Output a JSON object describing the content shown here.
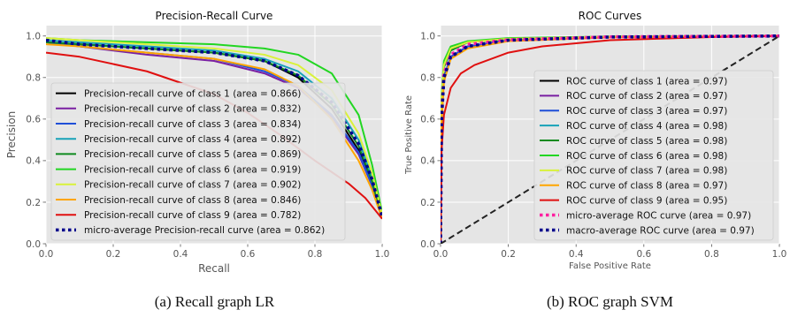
{
  "chart_data": [
    {
      "type": "line",
      "title": "Precision-Recall Curve",
      "xlabel": "Recall",
      "ylabel": "Precision",
      "xlim": [
        0.0,
        1.0
      ],
      "ylim": [
        0.0,
        1.05
      ],
      "xticks": [
        "0.0",
        "0.2",
        "0.4",
        "0.6",
        "0.8",
        "1.0"
      ],
      "yticks": [
        "0.0",
        "0.2",
        "0.4",
        "0.6",
        "0.8",
        "1.0"
      ],
      "grid": true,
      "legend_position": "lower-left",
      "series": [
        {
          "name": "Precision-recall curve of class 1 (area = 0.866)",
          "color": "#000000",
          "style": "solid",
          "points": [
            [
              0,
              0.97
            ],
            [
              0.1,
              0.96
            ],
            [
              0.3,
              0.94
            ],
            [
              0.5,
              0.92
            ],
            [
              0.65,
              0.88
            ],
            [
              0.75,
              0.8
            ],
            [
              0.85,
              0.65
            ],
            [
              0.93,
              0.45
            ],
            [
              0.97,
              0.3
            ],
            [
              1.0,
              0.12
            ]
          ]
        },
        {
          "name": "Precision-recall curve of class 2 (area = 0.832)",
          "color": "#7a1fa2",
          "style": "solid",
          "points": [
            [
              0,
              0.97
            ],
            [
              0.1,
              0.95
            ],
            [
              0.3,
              0.91
            ],
            [
              0.5,
              0.88
            ],
            [
              0.65,
              0.82
            ],
            [
              0.75,
              0.75
            ],
            [
              0.85,
              0.61
            ],
            [
              0.93,
              0.43
            ],
            [
              0.97,
              0.28
            ],
            [
              1.0,
              0.12
            ]
          ]
        },
        {
          "name": "Precision-recall curve of class 3 (area = 0.834)",
          "color": "#1f4fd8",
          "style": "solid",
          "points": [
            [
              0,
              0.97
            ],
            [
              0.1,
              0.95
            ],
            [
              0.3,
              0.92
            ],
            [
              0.5,
              0.89
            ],
            [
              0.65,
              0.83
            ],
            [
              0.75,
              0.76
            ],
            [
              0.85,
              0.62
            ],
            [
              0.93,
              0.44
            ],
            [
              0.97,
              0.28
            ],
            [
              1.0,
              0.12
            ]
          ]
        },
        {
          "name": "Precision-recall curve of class 4 (area = 0.892)",
          "color": "#17a2b8",
          "style": "solid",
          "points": [
            [
              0,
              0.98
            ],
            [
              0.1,
              0.97
            ],
            [
              0.3,
              0.95
            ],
            [
              0.5,
              0.93
            ],
            [
              0.65,
              0.89
            ],
            [
              0.75,
              0.83
            ],
            [
              0.85,
              0.7
            ],
            [
              0.93,
              0.5
            ],
            [
              0.97,
              0.32
            ],
            [
              1.0,
              0.13
            ]
          ]
        },
        {
          "name": "Precision-recall curve of class 5 (area = 0.869)",
          "color": "#0f8a1f",
          "style": "solid",
          "points": [
            [
              0,
              0.97
            ],
            [
              0.1,
              0.96
            ],
            [
              0.3,
              0.94
            ],
            [
              0.5,
              0.92
            ],
            [
              0.65,
              0.88
            ],
            [
              0.75,
              0.81
            ],
            [
              0.85,
              0.67
            ],
            [
              0.93,
              0.47
            ],
            [
              0.97,
              0.3
            ],
            [
              1.0,
              0.12
            ]
          ]
        },
        {
          "name": "Precision-recall curve of class 6 (area = 0.919)",
          "color": "#22d622",
          "style": "solid",
          "points": [
            [
              0,
              0.99
            ],
            [
              0.1,
              0.98
            ],
            [
              0.3,
              0.97
            ],
            [
              0.5,
              0.96
            ],
            [
              0.65,
              0.94
            ],
            [
              0.75,
              0.91
            ],
            [
              0.85,
              0.82
            ],
            [
              0.93,
              0.62
            ],
            [
              0.97,
              0.38
            ],
            [
              1.0,
              0.15
            ]
          ]
        },
        {
          "name": "Precision-recall curve of class 7 (area = 0.902)",
          "color": "#d9f23a",
          "style": "solid",
          "points": [
            [
              0,
              0.99
            ],
            [
              0.1,
              0.98
            ],
            [
              0.3,
              0.96
            ],
            [
              0.5,
              0.94
            ],
            [
              0.65,
              0.91
            ],
            [
              0.75,
              0.86
            ],
            [
              0.85,
              0.74
            ],
            [
              0.93,
              0.53
            ],
            [
              0.97,
              0.34
            ],
            [
              1.0,
              0.14
            ]
          ]
        },
        {
          "name": "Precision-recall curve of class 8 (area = 0.846)",
          "color": "#ffa500",
          "style": "solid",
          "points": [
            [
              0,
              0.96
            ],
            [
              0.1,
              0.95
            ],
            [
              0.3,
              0.92
            ],
            [
              0.5,
              0.89
            ],
            [
              0.65,
              0.84
            ],
            [
              0.75,
              0.76
            ],
            [
              0.85,
              0.6
            ],
            [
              0.93,
              0.4
            ],
            [
              0.97,
              0.26
            ],
            [
              1.0,
              0.12
            ]
          ]
        },
        {
          "name": "Precision-recall curve of class 9 (area = 0.782)",
          "color": "#e01010",
          "style": "solid",
          "points": [
            [
              0,
              0.92
            ],
            [
              0.1,
              0.9
            ],
            [
              0.3,
              0.83
            ],
            [
              0.5,
              0.72
            ],
            [
              0.6,
              0.63
            ],
            [
              0.7,
              0.52
            ],
            [
              0.8,
              0.4
            ],
            [
              0.9,
              0.29
            ],
            [
              0.95,
              0.22
            ],
            [
              1.0,
              0.12
            ]
          ]
        },
        {
          "name": "micro-average Precision-recall curve (area = 0.862)",
          "color": "#00008b",
          "style": "dotted",
          "points": [
            [
              0,
              0.98
            ],
            [
              0.1,
              0.96
            ],
            [
              0.3,
              0.94
            ],
            [
              0.5,
              0.92
            ],
            [
              0.65,
              0.88
            ],
            [
              0.75,
              0.81
            ],
            [
              0.85,
              0.68
            ],
            [
              0.93,
              0.48
            ],
            [
              0.97,
              0.31
            ],
            [
              1.0,
              0.13
            ]
          ]
        }
      ]
    },
    {
      "type": "line",
      "title": "ROC Curves",
      "xlabel": "False Positive Rate",
      "ylabel": "True Positive Rate",
      "xlim": [
        0.0,
        1.0
      ],
      "ylim": [
        0.0,
        1.05
      ],
      "xticks": [
        "0.0",
        "0.2",
        "0.4",
        "0.6",
        "0.8",
        "1.0"
      ],
      "yticks": [
        "0.0",
        "0.2",
        "0.4",
        "0.6",
        "0.8",
        "1.0"
      ],
      "grid": true,
      "legend_position": "lower-right",
      "series": [
        {
          "name": "ROC curve of class 1 (area = 0.97)",
          "color": "#000000",
          "style": "solid",
          "points": [
            [
              0,
              0
            ],
            [
              0.003,
              0.6
            ],
            [
              0.01,
              0.8
            ],
            [
              0.03,
              0.9
            ],
            [
              0.08,
              0.95
            ],
            [
              0.2,
              0.98
            ],
            [
              0.5,
              0.995
            ],
            [
              1,
              1
            ]
          ]
        },
        {
          "name": "ROC curve of class 2 (area = 0.97)",
          "color": "#7a1fa2",
          "style": "solid",
          "points": [
            [
              0,
              0
            ],
            [
              0.003,
              0.6
            ],
            [
              0.01,
              0.8
            ],
            [
              0.03,
              0.9
            ],
            [
              0.08,
              0.95
            ],
            [
              0.2,
              0.98
            ],
            [
              0.5,
              0.995
            ],
            [
              1,
              1
            ]
          ]
        },
        {
          "name": "ROC curve of class 3 (area = 0.97)",
          "color": "#1f4fd8",
          "style": "solid",
          "points": [
            [
              0,
              0
            ],
            [
              0.003,
              0.6
            ],
            [
              0.01,
              0.8
            ],
            [
              0.03,
              0.9
            ],
            [
              0.08,
              0.95
            ],
            [
              0.2,
              0.98
            ],
            [
              0.5,
              0.995
            ],
            [
              1,
              1
            ]
          ]
        },
        {
          "name": "ROC curve of class 4 (area = 0.98)",
          "color": "#17a2b8",
          "style": "solid",
          "points": [
            [
              0,
              0
            ],
            [
              0.003,
              0.68
            ],
            [
              0.01,
              0.85
            ],
            [
              0.03,
              0.93
            ],
            [
              0.08,
              0.97
            ],
            [
              0.2,
              0.985
            ],
            [
              0.5,
              0.997
            ],
            [
              1,
              1
            ]
          ]
        },
        {
          "name": "ROC curve of class 5 (area = 0.98)",
          "color": "#0f8a1f",
          "style": "solid",
          "points": [
            [
              0,
              0
            ],
            [
              0.003,
              0.68
            ],
            [
              0.01,
              0.85
            ],
            [
              0.03,
              0.93
            ],
            [
              0.08,
              0.97
            ],
            [
              0.2,
              0.985
            ],
            [
              0.5,
              0.997
            ],
            [
              1,
              1
            ]
          ]
        },
        {
          "name": "ROC curve of class 6 (area = 0.98)",
          "color": "#22d622",
          "style": "solid",
          "points": [
            [
              0,
              0
            ],
            [
              0.003,
              0.72
            ],
            [
              0.01,
              0.88
            ],
            [
              0.03,
              0.95
            ],
            [
              0.08,
              0.975
            ],
            [
              0.2,
              0.99
            ],
            [
              0.5,
              0.998
            ],
            [
              1,
              1
            ]
          ]
        },
        {
          "name": "ROC curve of class 7 (area = 0.98)",
          "color": "#d9f23a",
          "style": "solid",
          "points": [
            [
              0,
              0
            ],
            [
              0.003,
              0.7
            ],
            [
              0.01,
              0.86
            ],
            [
              0.03,
              0.94
            ],
            [
              0.08,
              0.97
            ],
            [
              0.2,
              0.987
            ],
            [
              0.5,
              0.997
            ],
            [
              1,
              1
            ]
          ]
        },
        {
          "name": "ROC curve of class 8 (area = 0.97)",
          "color": "#ffa500",
          "style": "solid",
          "points": [
            [
              0,
              0
            ],
            [
              0.003,
              0.58
            ],
            [
              0.01,
              0.78
            ],
            [
              0.03,
              0.89
            ],
            [
              0.08,
              0.94
            ],
            [
              0.2,
              0.975
            ],
            [
              0.5,
              0.993
            ],
            [
              1,
              1
            ]
          ]
        },
        {
          "name": "ROC curve of class 9 (area = 0.95)",
          "color": "#e01010",
          "style": "solid",
          "points": [
            [
              0,
              0
            ],
            [
              0.003,
              0.45
            ],
            [
              0.01,
              0.62
            ],
            [
              0.03,
              0.75
            ],
            [
              0.06,
              0.82
            ],
            [
              0.1,
              0.86
            ],
            [
              0.2,
              0.92
            ],
            [
              0.3,
              0.95
            ],
            [
              0.5,
              0.98
            ],
            [
              0.8,
              0.995
            ],
            [
              1,
              1
            ]
          ]
        },
        {
          "name": "micro-average ROC curve (area = 0.97)",
          "color": "#ff1fa0",
          "style": "dotted",
          "points": [
            [
              0,
              0
            ],
            [
              0.003,
              0.62
            ],
            [
              0.01,
              0.82
            ],
            [
              0.03,
              0.91
            ],
            [
              0.08,
              0.96
            ],
            [
              0.2,
              0.982
            ],
            [
              0.5,
              0.996
            ],
            [
              1,
              1
            ]
          ]
        },
        {
          "name": "macro-average ROC curve (area = 0.97)",
          "color": "#00008b",
          "style": "dotted",
          "points": [
            [
              0,
              0
            ],
            [
              0.003,
              0.6
            ],
            [
              0.01,
              0.8
            ],
            [
              0.03,
              0.9
            ],
            [
              0.08,
              0.95
            ],
            [
              0.2,
              0.98
            ],
            [
              0.5,
              0.995
            ],
            [
              1,
              1
            ]
          ]
        },
        {
          "name": "",
          "color": "#222222",
          "style": "dashed",
          "points": [
            [
              0,
              0
            ],
            [
              1,
              1
            ]
          ]
        }
      ]
    }
  ],
  "captions": {
    "left": "(a) Recall graph LR",
    "right": "(b) ROC graph SVM"
  }
}
